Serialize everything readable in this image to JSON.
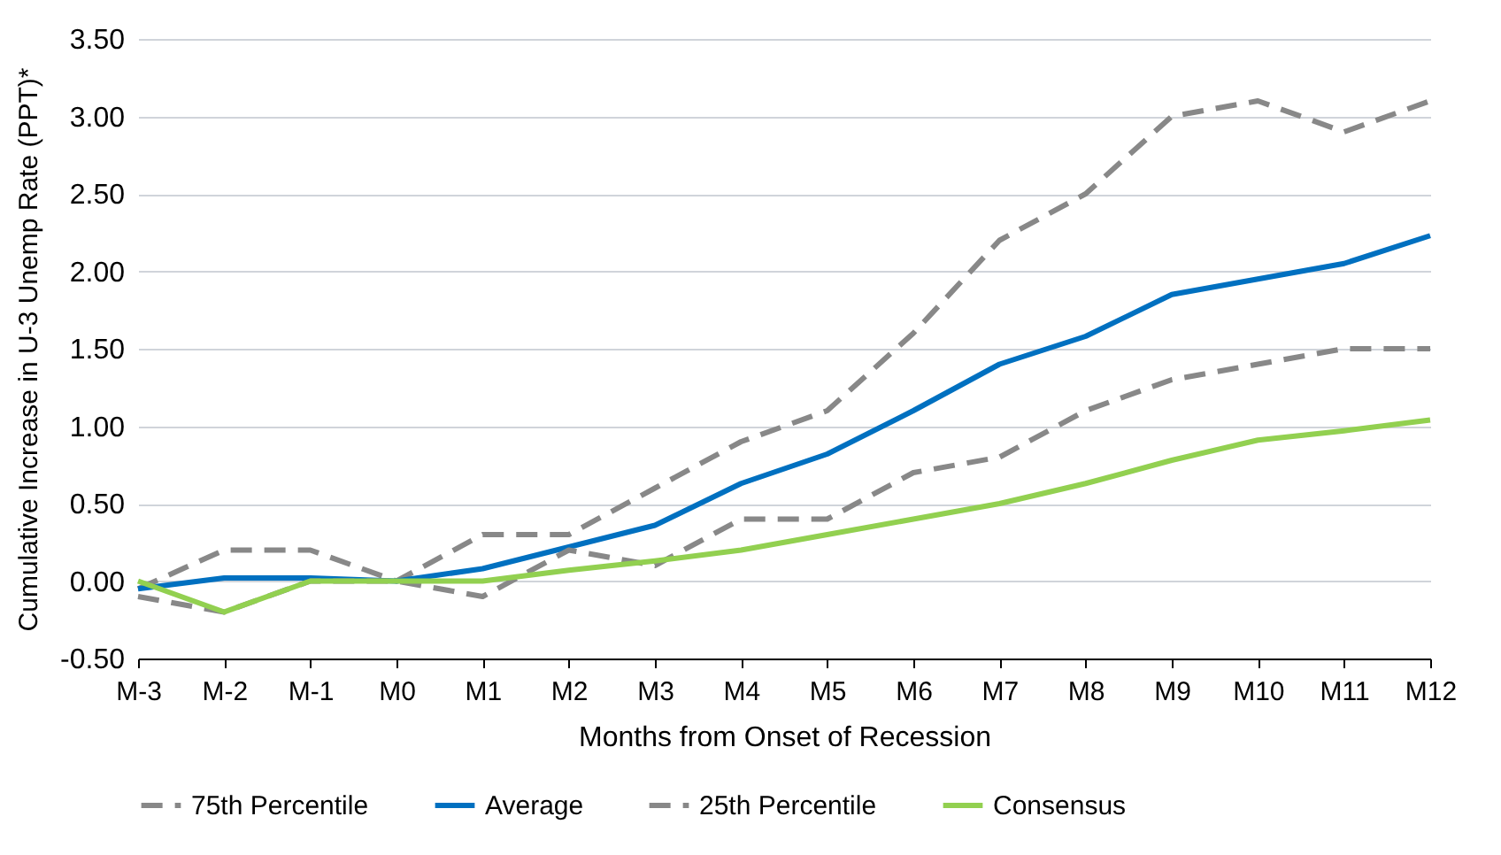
{
  "chart_data": {
    "type": "line",
    "xlabel": "Months from Onset of Recession",
    "ylabel": "Cumulative Increase in U-3 Unemp Rate (PPT)*",
    "categories": [
      "M-3",
      "M-2",
      "M-1",
      "M0",
      "M1",
      "M2",
      "M3",
      "M4",
      "M5",
      "M6",
      "M7",
      "M8",
      "M9",
      "M10",
      "M11",
      "M12"
    ],
    "series": [
      {
        "name": "75th Percentile",
        "color": "#888888",
        "line_style": "dashed",
        "values": [
          -0.05,
          0.2,
          0.2,
          0,
          0.3,
          0.3,
          0.6,
          0.9,
          1.1,
          1.6,
          2.2,
          2.5,
          3.0,
          3.1,
          2.9,
          3.1
        ]
      },
      {
        "name": "Average",
        "color": "#0070c0",
        "line_style": "solid",
        "values": [
          -0.05,
          0.02,
          0.02,
          0,
          0.08,
          0.22,
          0.36,
          0.63,
          0.82,
          1.1,
          1.4,
          1.58,
          1.85,
          1.95,
          2.05,
          2.23
        ]
      },
      {
        "name": "25th Percentile",
        "color": "#888888",
        "line_style": "dashed",
        "values": [
          -0.1,
          -0.2,
          0,
          0,
          -0.1,
          0.2,
          0.1,
          0.4,
          0.4,
          0.7,
          0.8,
          1.1,
          1.3,
          1.4,
          1.5,
          1.5
        ]
      },
      {
        "name": "Consensus",
        "color": "#92d050",
        "line_style": "solid",
        "values": [
          0,
          -0.2,
          0,
          0,
          0,
          0.07,
          0.13,
          0.2,
          0.3,
          0.4,
          0.5,
          0.63,
          0.78,
          0.91,
          0.97,
          1.04
        ]
      }
    ],
    "ylim": [
      -0.5,
      3.5
    ],
    "yticks": [
      {
        "value": -0.5,
        "label": "-0.50"
      },
      {
        "value": 0,
        "label": "0.00"
      },
      {
        "value": 0.5,
        "label": "0.50"
      },
      {
        "value": 1,
        "label": "1.00"
      },
      {
        "value": 1.5,
        "label": "1.50"
      },
      {
        "value": 2,
        "label": "2.00"
      },
      {
        "value": 2.5,
        "label": "2.50"
      },
      {
        "value": 3,
        "label": "3.00"
      },
      {
        "value": 3.5,
        "label": "3.50"
      }
    ],
    "grid": "y",
    "legend": "bottom"
  }
}
